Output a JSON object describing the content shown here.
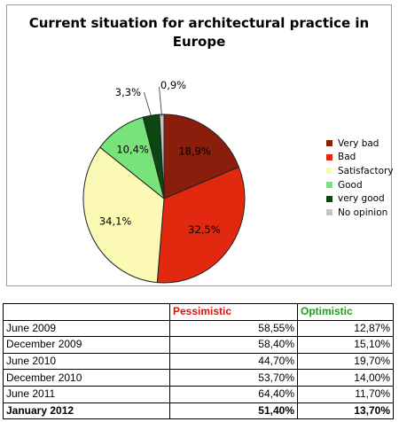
{
  "chart_data": [
    {
      "type": "pie",
      "title": "Current situation for architectural practice in Europe",
      "slices": [
        {
          "label": "Very bad",
          "value": 18.9,
          "display": "18,9%",
          "color": "#8b1d0c"
        },
        {
          "label": "Bad",
          "value": 32.5,
          "display": "32,5%",
          "color": "#e2290f"
        },
        {
          "label": "Satisfactory",
          "value": 34.1,
          "display": "34,1%",
          "color": "#fcf9b4"
        },
        {
          "label": "Good",
          "value": 10.4,
          "display": "10,4%",
          "color": "#79e37b"
        },
        {
          "label": "very good",
          "value": 3.3,
          "display": "3,3%",
          "color": "#0b4711"
        },
        {
          "label": "No opinion",
          "value": 0.9,
          "display": "0,9%",
          "color": "#c4c4c4"
        }
      ],
      "legend_position": "right"
    },
    {
      "type": "table",
      "columns": [
        "",
        "Pessimistic",
        "Optimistic"
      ],
      "rows": [
        {
          "period": "June 2009",
          "pessimistic": "58,55%",
          "optimistic": "12,87%"
        },
        {
          "period": "December 2009",
          "pessimistic": "58,40%",
          "optimistic": "15,10%"
        },
        {
          "period": "June 2010",
          "pessimistic": "44,70%",
          "optimistic": "19,70%"
        },
        {
          "period": "December 2010",
          "pessimistic": "53,70%",
          "optimistic": "14,00%"
        },
        {
          "period": "June 2011",
          "pessimistic": "64,40%",
          "optimistic": "11,70%"
        },
        {
          "period": "January 2012",
          "pessimistic": "51,40%",
          "optimistic": "13,70%",
          "bold": true
        }
      ]
    }
  ]
}
